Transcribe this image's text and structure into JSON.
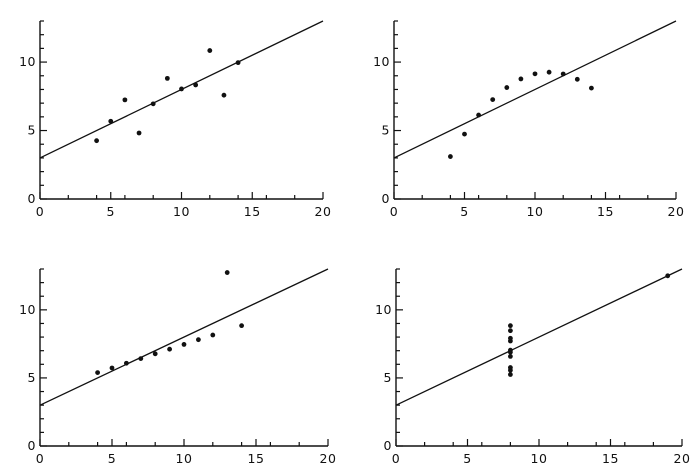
{
  "colors": {
    "ink": "#111111",
    "background": "#ffffff"
  },
  "chart_data": [
    {
      "type": "scatter",
      "title": "",
      "xlabel": "",
      "ylabel": "",
      "xlim": [
        0,
        20
      ],
      "ylim": [
        0,
        13
      ],
      "x_ticks": [
        0,
        5,
        10,
        15,
        20
      ],
      "y_ticks": [
        0,
        5,
        10
      ],
      "grid": false,
      "series": [
        {
          "x": [
            10,
            8,
            13,
            9,
            11,
            14,
            6,
            4,
            12,
            7,
            5
          ],
          "y": [
            8.04,
            6.95,
            7.58,
            8.81,
            8.33,
            9.96,
            7.24,
            4.26,
            10.84,
            4.82,
            5.68
          ]
        }
      ],
      "fit_line": {
        "intercept": 3.0,
        "slope": 0.5
      }
    },
    {
      "type": "scatter",
      "title": "",
      "xlabel": "",
      "ylabel": "",
      "xlim": [
        0,
        20
      ],
      "ylim": [
        0,
        13
      ],
      "x_ticks": [
        0,
        5,
        10,
        15,
        20
      ],
      "y_ticks": [
        0,
        5,
        10
      ],
      "grid": false,
      "series": [
        {
          "x": [
            10,
            8,
            13,
            9,
            11,
            14,
            6,
            4,
            12,
            7,
            5
          ],
          "y": [
            9.14,
            8.14,
            8.74,
            8.77,
            9.26,
            8.1,
            6.13,
            3.1,
            9.13,
            7.26,
            4.74
          ]
        }
      ],
      "fit_line": {
        "intercept": 3.0,
        "slope": 0.5
      }
    },
    {
      "type": "scatter",
      "title": "",
      "xlabel": "",
      "ylabel": "",
      "xlim": [
        0,
        20
      ],
      "ylim": [
        0,
        13
      ],
      "x_ticks": [
        0,
        5,
        10,
        15,
        20
      ],
      "y_ticks": [
        0,
        5,
        10
      ],
      "grid": false,
      "series": [
        {
          "x": [
            10,
            8,
            13,
            9,
            11,
            14,
            6,
            4,
            12,
            7,
            5
          ],
          "y": [
            7.46,
            6.77,
            12.74,
            7.11,
            7.81,
            8.84,
            6.08,
            5.39,
            8.15,
            6.42,
            5.73
          ]
        }
      ],
      "fit_line": {
        "intercept": 3.0,
        "slope": 0.5
      }
    },
    {
      "type": "scatter",
      "title": "",
      "xlabel": "",
      "ylabel": "",
      "xlim": [
        0,
        20
      ],
      "ylim": [
        0,
        13
      ],
      "x_ticks": [
        0,
        5,
        10,
        15,
        20
      ],
      "y_ticks": [
        0,
        5,
        10
      ],
      "grid": false,
      "series": [
        {
          "x": [
            8,
            8,
            8,
            8,
            8,
            8,
            8,
            19,
            8,
            8,
            8
          ],
          "y": [
            6.58,
            5.76,
            7.71,
            8.84,
            8.47,
            7.04,
            5.25,
            12.5,
            5.56,
            7.91,
            6.89
          ]
        }
      ],
      "fit_line": {
        "intercept": 3.0,
        "slope": 0.5
      }
    }
  ]
}
